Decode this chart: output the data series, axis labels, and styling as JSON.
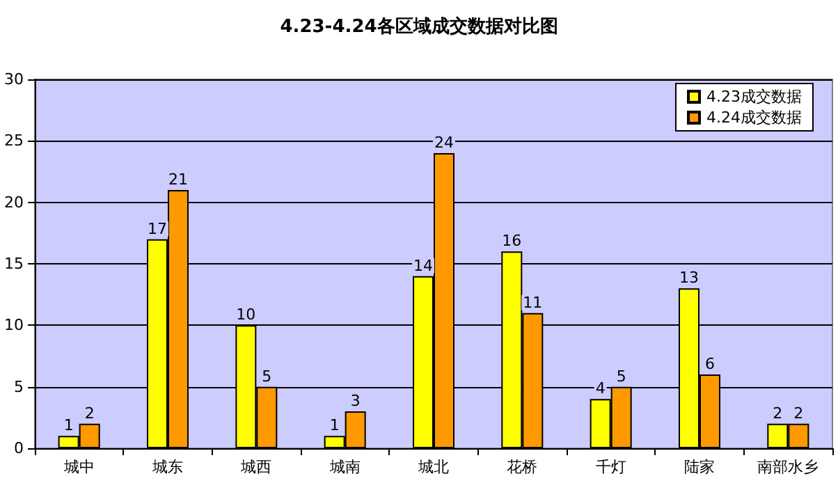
{
  "chart_data": {
    "type": "bar",
    "title": "4.23-4.24各区域成交数据对比图",
    "categories": [
      "城中",
      "城东",
      "城西",
      "城南",
      "城北",
      "花桥",
      "千灯",
      "陆家",
      "南部水乡"
    ],
    "series": [
      {
        "name": "4.23成交数据",
        "color": "#ffff00",
        "values": [
          1,
          17,
          10,
          1,
          14,
          16,
          4,
          13,
          2
        ]
      },
      {
        "name": "4.24成交数据",
        "color": "#ff9900",
        "values": [
          2,
          21,
          5,
          3,
          24,
          11,
          5,
          6,
          2
        ]
      }
    ],
    "ylim": [
      0,
      30
    ],
    "yticks": [
      0,
      5,
      10,
      15,
      20,
      25,
      30
    ],
    "grid": "y",
    "legend": "top right",
    "data_labels": true
  }
}
